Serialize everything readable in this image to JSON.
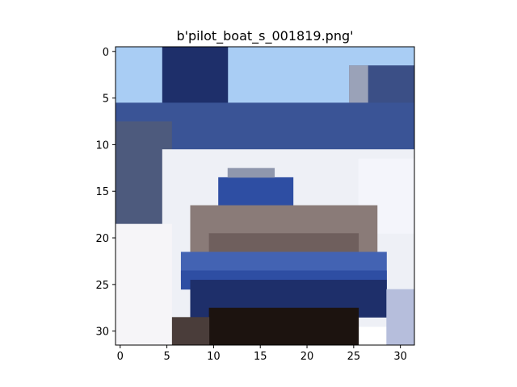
{
  "figure": {
    "title": "b'pilot_boat_s_001819.png'"
  },
  "axes": {
    "x_ticks": [
      0,
      5,
      10,
      15,
      20,
      25,
      30
    ],
    "y_ticks": [
      0,
      5,
      10,
      15,
      20,
      25,
      30
    ],
    "x_range": [
      -0.5,
      31.5
    ],
    "y_range": [
      -0.5,
      31.5
    ],
    "image_resolution": [
      32,
      32
    ]
  },
  "colors": {
    "sky": "#a9cdf4",
    "hull_navy": "#1e2f6a",
    "cabin_white": "#eef0f6",
    "deck_brown": "#8a7b78",
    "dark_bow": "#1c130f",
    "stripe_blue": "#2e4ea3"
  }
}
